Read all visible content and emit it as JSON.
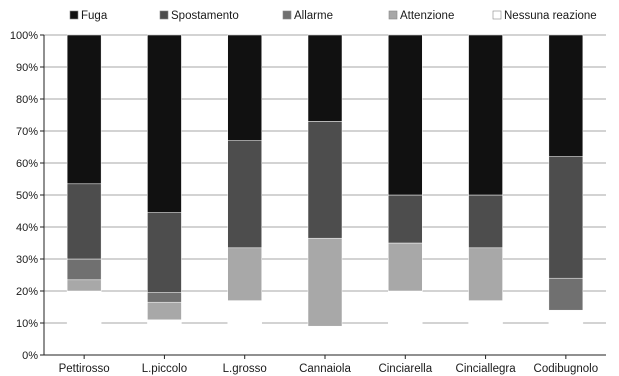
{
  "chart_data": {
    "type": "bar",
    "stacked": true,
    "percent": true,
    "categories": [
      "Pettirosso",
      "L.piccolo",
      "L.grosso",
      "Cannaiola",
      "Cinciarella",
      "Cinciallegra",
      "Codibugnolo"
    ],
    "series": [
      {
        "name": "Nessuna reazione",
        "color": "#ffffff",
        "values": [
          20,
          11,
          17,
          9,
          20,
          17,
          14
        ]
      },
      {
        "name": "Attenzione",
        "color": "#a8a8a8",
        "values": [
          3.5,
          5.5,
          16.5,
          27.5,
          15,
          16.5,
          0
        ]
      },
      {
        "name": "Allarme",
        "color": "#707070",
        "values": [
          6.5,
          3,
          0,
          0,
          0,
          0,
          10
        ]
      },
      {
        "name": "Spostamento",
        "color": "#4d4d4d",
        "values": [
          23.5,
          25,
          33.5,
          36.5,
          15,
          16.5,
          38
        ]
      },
      {
        "name": "Fuga",
        "color": "#111111",
        "values": [
          46.5,
          55.5,
          33,
          27,
          50,
          50,
          38
        ]
      }
    ],
    "legend_order": [
      "Fuga",
      "Spostamento",
      "Allarme",
      "Attenzione",
      "Nessuna reazione"
    ],
    "yticks": [
      "0%",
      "10%",
      "20%",
      "30%",
      "40%",
      "50%",
      "60%",
      "70%",
      "80%",
      "90%",
      "100%"
    ],
    "ylim": [
      0,
      100
    ],
    "grid": true,
    "legend_position": "top"
  }
}
